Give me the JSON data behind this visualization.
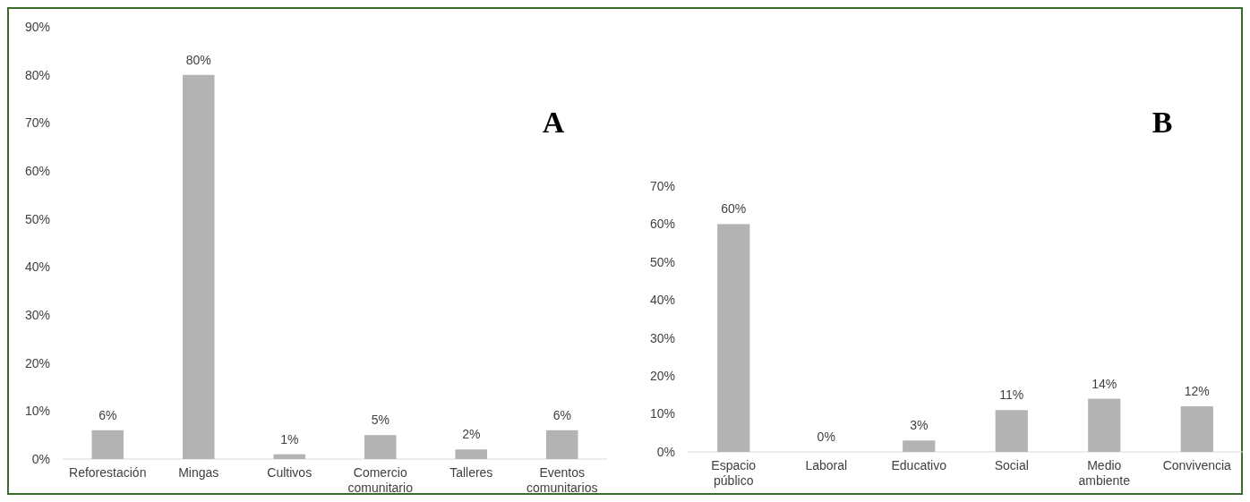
{
  "chart_data": [
    {
      "type": "bar",
      "categories": [
        "Reforestación",
        "Mingas",
        "Cultivos",
        "Comercio comunitario",
        "Talleres",
        "Eventos comunitarios"
      ],
      "values": [
        6,
        80,
        1,
        5,
        2,
        6
      ],
      "color": "#b3b3b3",
      "value_labels": [
        "6%",
        "80%",
        "1%",
        "5%",
        "2%",
        "6%"
      ],
      "ylim": [
        0,
        90
      ],
      "yticks": [
        {
          "value": 0,
          "label": "0%"
        },
        {
          "value": 10,
          "label": "10%"
        },
        {
          "value": 20,
          "label": "20%"
        },
        {
          "value": 30,
          "label": "30%"
        },
        {
          "value": 40,
          "label": "40%"
        },
        {
          "value": 50,
          "label": "50%"
        },
        {
          "value": 60,
          "label": "60%"
        },
        {
          "value": 70,
          "label": "70%"
        },
        {
          "value": 80,
          "label": "80%"
        },
        {
          "value": 90,
          "label": "90%"
        }
      ],
      "annotations": [
        "A"
      ],
      "grid": false
    },
    {
      "type": "bar",
      "categories": [
        "Espacio público",
        "Laboral",
        "Educativo",
        "Social",
        "Medio ambiente",
        "Convivencia"
      ],
      "values": [
        60,
        0,
        3,
        11,
        14,
        12
      ],
      "color": "#b3b3b3",
      "value_labels": [
        "60%",
        "0%",
        "3%",
        "11%",
        "14%",
        "12%"
      ],
      "ylim": [
        0,
        70
      ],
      "yticks": [
        {
          "value": 0,
          "label": "0%"
        },
        {
          "value": 10,
          "label": "10%"
        },
        {
          "value": 20,
          "label": "20%"
        },
        {
          "value": 30,
          "label": "30%"
        },
        {
          "value": 40,
          "label": "40%"
        },
        {
          "value": 50,
          "label": "50%"
        },
        {
          "value": 60,
          "label": "60%"
        },
        {
          "value": 70,
          "label": "70%"
        }
      ],
      "annotations": [
        "B"
      ],
      "grid": false
    }
  ]
}
